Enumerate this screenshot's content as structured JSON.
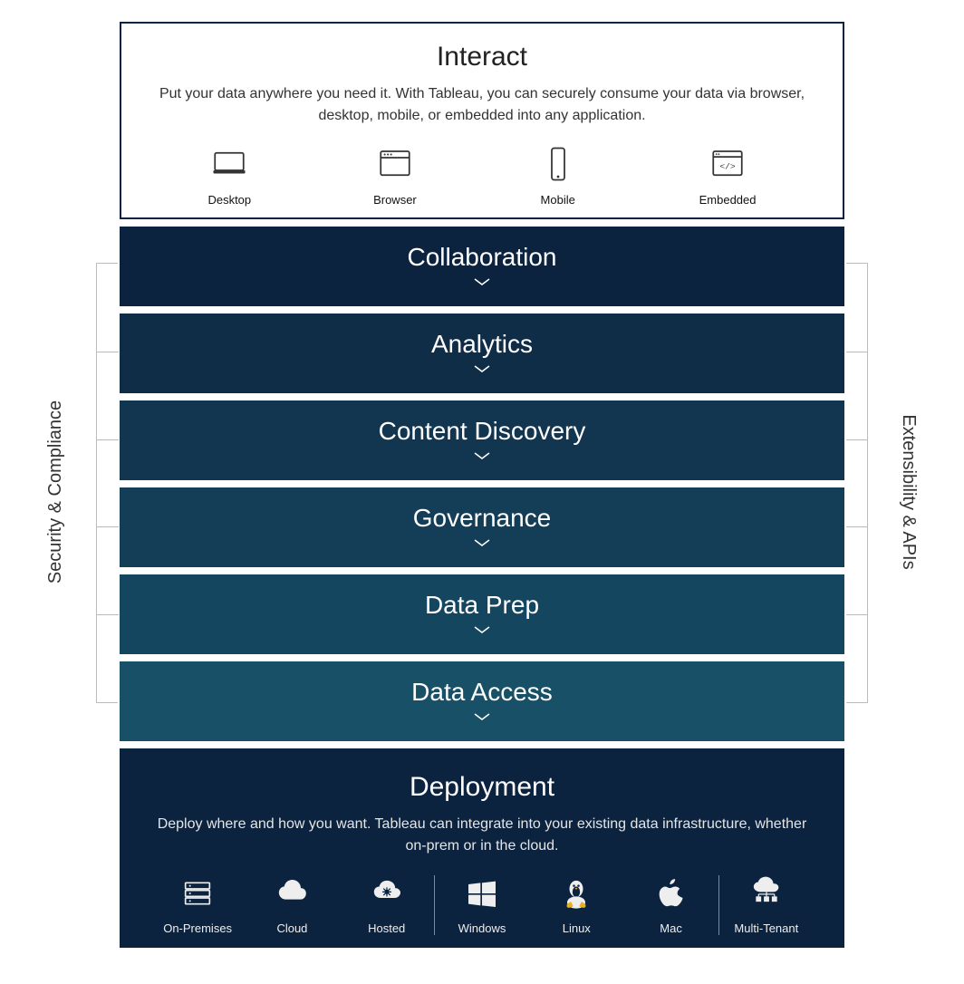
{
  "colors": {
    "panel_border": "#0c2340",
    "layer_bg": [
      "#0c2340",
      "#102d48",
      "#123550",
      "#143e57",
      "#15465f",
      "#175067"
    ]
  },
  "side_labels": {
    "left": "Security & Compliance",
    "right": "Extensibility & APIs"
  },
  "interact": {
    "title": "Interact",
    "desc": "Put your data anywhere you need it. With Tableau, you can securely consume your data via browser, desktop, mobile, or embedded into any application.",
    "items": [
      {
        "icon": "desktop",
        "label": "Desktop"
      },
      {
        "icon": "browser",
        "label": "Browser"
      },
      {
        "icon": "mobile",
        "label": "Mobile"
      },
      {
        "icon": "embedded",
        "label": "Embedded"
      }
    ]
  },
  "layers": [
    {
      "label": "Collaboration"
    },
    {
      "label": "Analytics"
    },
    {
      "label": "Content Discovery"
    },
    {
      "label": "Governance"
    },
    {
      "label": "Data Prep"
    },
    {
      "label": "Data Access"
    }
  ],
  "deployment": {
    "title": "Deployment",
    "desc": "Deploy where and how you want. Tableau can integrate into your existing data infrastructure, whether on-prem or in the cloud.",
    "groups": [
      [
        {
          "icon": "onprem",
          "label": "On-Premises"
        },
        {
          "icon": "cloud",
          "label": "Cloud"
        },
        {
          "icon": "hosted",
          "label": "Hosted"
        }
      ],
      [
        {
          "icon": "windows",
          "label": "Windows"
        },
        {
          "icon": "linux",
          "label": "Linux"
        },
        {
          "icon": "mac",
          "label": "Mac"
        }
      ],
      [
        {
          "icon": "multi",
          "label": "Multi-Tenant"
        }
      ]
    ]
  }
}
